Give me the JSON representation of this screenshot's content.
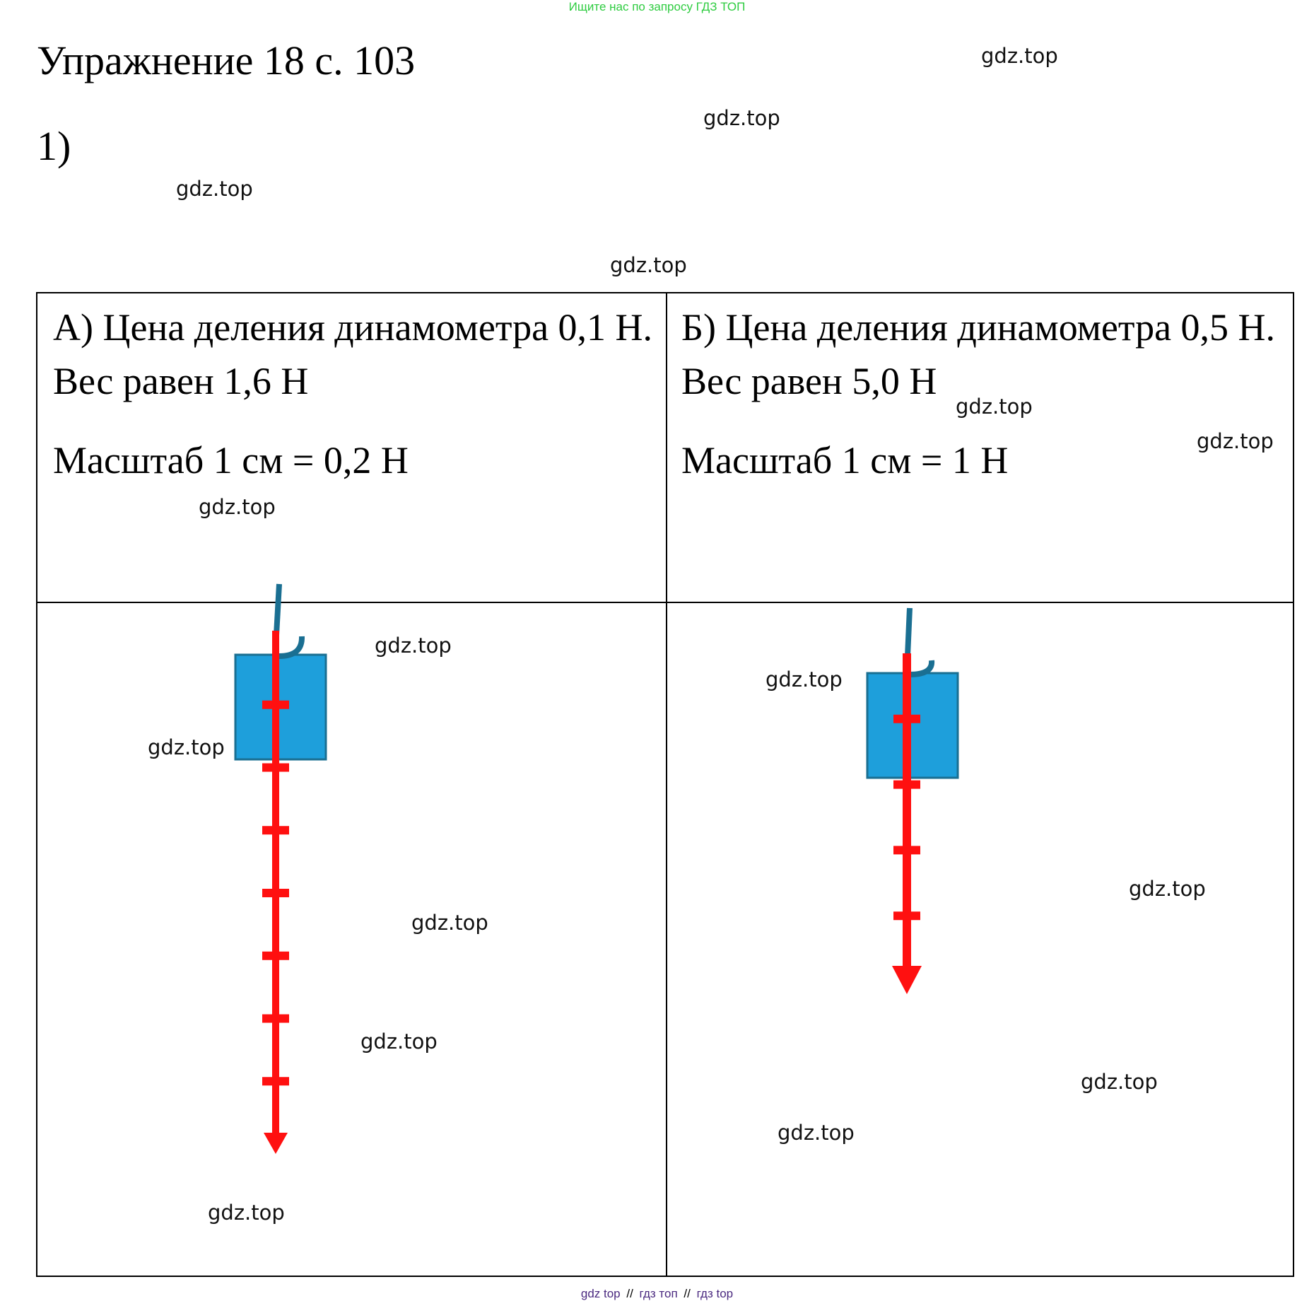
{
  "banner": "Ищите нас по запросу ГДЗ ТОП",
  "heading": "Упражнение 18 с. 103",
  "sub_number": "1)",
  "watermark": "gdz.top",
  "cell_a": {
    "line1": "А) Цена деления динамометра 0,1 Н. Вес равен 1,6 Н",
    "scale": "Масштаб 1 см = 0,2 Н"
  },
  "cell_b": {
    "line1": "Б) Цена деления динамометра 0,5 Н. Вес равен 5,0 Н",
    "scale": "Масштаб 1 см = 1 Н"
  },
  "diagram_a": {
    "weight_n": 1.6,
    "scale_n_per_cm": 0.2,
    "divisions_cm": 8
  },
  "diagram_b": {
    "weight_n": 5.0,
    "scale_n_per_cm": 1,
    "divisions_cm": 5
  },
  "colors": {
    "arrow": "#ff1010",
    "block": "#1e9fdb",
    "string": "#1a6f92",
    "banner": "#2ecc40"
  },
  "footer": {
    "left": "gdz top",
    "sep": "//",
    "middle": "гдз топ",
    "right": "гдз top"
  }
}
